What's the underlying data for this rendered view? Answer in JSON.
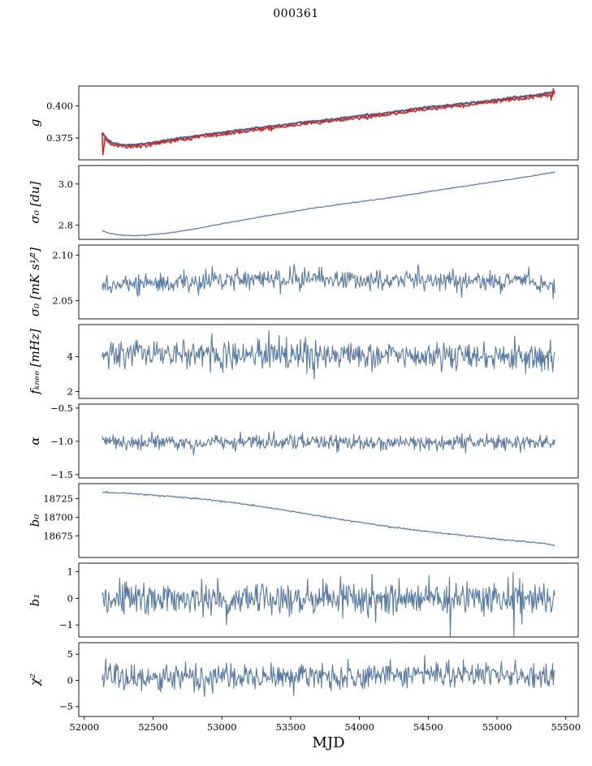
{
  "title": "000361",
  "xlabel": "MJD",
  "chart_data": {
    "type": "line",
    "layout": "8 vertically stacked subplots sharing one x-axis, no grid, no legend, thin black axes",
    "line_color": "#587aa5",
    "model_line_color": "#4d648c",
    "highlight_color": "#dd1c1c",
    "x_axis": {
      "label": "MJD",
      "ticks": [
        52000,
        52500,
        53000,
        53500,
        54000,
        54500,
        55000,
        55500
      ],
      "xlim": [
        51960,
        55590
      ],
      "data_range": [
        52130,
        55420
      ]
    },
    "panels": [
      {
        "name": "g",
        "ylabel": "g",
        "ylim": [
          0.358,
          0.4155
        ],
        "yticks": [
          0.375,
          0.4
        ],
        "ytick_labels": [
          "0.375",
          "0.400"
        ],
        "trend": [
          [
            52130,
            0.379
          ],
          [
            52160,
            0.3745
          ],
          [
            52200,
            0.371
          ],
          [
            52260,
            0.3693
          ],
          [
            52340,
            0.369
          ],
          [
            52430,
            0.37
          ],
          [
            52550,
            0.372
          ],
          [
            52700,
            0.3745
          ],
          [
            52850,
            0.3768
          ],
          [
            53000,
            0.3788
          ],
          [
            53200,
            0.3815
          ],
          [
            53400,
            0.3843
          ],
          [
            53600,
            0.3868
          ],
          [
            53800,
            0.389
          ],
          [
            54000,
            0.3918
          ],
          [
            54200,
            0.394
          ],
          [
            54350,
            0.3963
          ],
          [
            54500,
            0.3985
          ],
          [
            54650,
            0.4003
          ],
          [
            54800,
            0.4018
          ],
          [
            54950,
            0.4035
          ],
          [
            55100,
            0.4058
          ],
          [
            55250,
            0.4075
          ],
          [
            55420,
            0.4105
          ]
        ],
        "series": [
          {
            "name": "g_model",
            "color": "#4d648c",
            "width": 2.3,
            "offset": 0.0005,
            "noise": 0.0003,
            "n": 520,
            "seed": 11
          },
          {
            "name": "g_measured",
            "color": "#dd1c1c",
            "width": 1.5,
            "offset": -0.0009,
            "noise": 0.0007,
            "n": 620,
            "seed": 12,
            "spikes": [
              [
                52136,
                0.362
              ],
              [
                52141,
                0.3665
              ],
              [
                52147,
                0.3705
              ],
              [
                55396,
                0.4045
              ],
              [
                55408,
                0.4135
              ]
            ]
          }
        ]
      },
      {
        "name": "sigma0_du",
        "ylabel": "σ₀ [du]",
        "ylim": [
          2.73,
          3.09
        ],
        "yticks": [
          2.8,
          3.0
        ],
        "ytick_labels": [
          "2.8",
          "3.0"
        ],
        "trend": [
          [
            52130,
            2.772
          ],
          [
            52180,
            2.76
          ],
          [
            52250,
            2.752
          ],
          [
            52350,
            2.748
          ],
          [
            52450,
            2.75
          ],
          [
            52600,
            2.76
          ],
          [
            52750,
            2.775
          ],
          [
            52900,
            2.793
          ],
          [
            53050,
            2.812
          ],
          [
            53200,
            2.83
          ],
          [
            53350,
            2.848
          ],
          [
            53500,
            2.864
          ],
          [
            53650,
            2.88
          ],
          [
            53800,
            2.895
          ],
          [
            53950,
            2.909
          ],
          [
            54100,
            2.922
          ],
          [
            54250,
            2.936
          ],
          [
            54400,
            2.951
          ],
          [
            54550,
            2.968
          ],
          [
            54700,
            2.983
          ],
          [
            54850,
            2.998
          ],
          [
            55000,
            3.013
          ],
          [
            55150,
            3.028
          ],
          [
            55300,
            3.044
          ],
          [
            55420,
            3.058
          ]
        ],
        "series": [
          {
            "name": "sigma0_du",
            "color": "#587aa5",
            "width": 1.2,
            "noise": 0.0012,
            "n": 520,
            "seed": 21
          }
        ]
      },
      {
        "name": "sigma0_mks",
        "ylabel": "σ₀ [mK s¹⁄²]",
        "ylim": [
          2.03,
          2.111
        ],
        "yticks": [
          2.05,
          2.1
        ],
        "ytick_labels": [
          "2.05",
          "2.10"
        ],
        "trend": [
          [
            52130,
            2.066
          ],
          [
            52400,
            2.069
          ],
          [
            52700,
            2.071
          ],
          [
            53000,
            2.072
          ],
          [
            53300,
            2.0735
          ],
          [
            53700,
            2.073
          ],
          [
            54100,
            2.0725
          ],
          [
            54500,
            2.072
          ],
          [
            54900,
            2.0715
          ],
          [
            55200,
            2.0725
          ],
          [
            55420,
            2.067
          ]
        ],
        "series": [
          {
            "name": "sigma0_mks",
            "color": "#587aa5",
            "width": 1.1,
            "noise": 0.0055,
            "n": 560,
            "seed": 31
          }
        ]
      },
      {
        "name": "f_knee",
        "ylabel": "fₖₙₑₑ [mHz]",
        "ylim": [
          1.6,
          5.85
        ],
        "yticks": [
          2,
          4
        ],
        "ytick_labels": [
          "2",
          "4"
        ],
        "trend": [
          [
            52130,
            4.25
          ],
          [
            52600,
            4.2
          ],
          [
            53200,
            4.15
          ],
          [
            54000,
            4.12
          ],
          [
            54800,
            4.02
          ],
          [
            55420,
            3.95
          ]
        ],
        "series": [
          {
            "name": "f_knee",
            "color": "#587aa5",
            "width": 1.1,
            "noise": 0.42,
            "n": 620,
            "seed": 41
          }
        ]
      },
      {
        "name": "alpha",
        "ylabel": "α",
        "ylim": [
          -1.55,
          -0.44
        ],
        "yticks": [
          -1.5,
          -1.0,
          -0.5
        ],
        "ytick_labels": [
          "−1.5",
          "−1.0",
          "−0.5"
        ],
        "trend": [
          [
            52130,
            -1.02
          ],
          [
            55420,
            -1.02
          ]
        ],
        "series": [
          {
            "name": "alpha",
            "color": "#587aa5",
            "width": 1.1,
            "noise": 0.055,
            "n": 620,
            "seed": 51
          }
        ]
      },
      {
        "name": "b0",
        "ylabel": "b₀",
        "ylim": [
          18646,
          18745
        ],
        "yticks": [
          18675,
          18700,
          18725
        ],
        "ytick_labels": [
          "18675",
          "18700",
          "18725"
        ],
        "trend": [
          [
            52130,
            18733.5
          ],
          [
            52350,
            18731.5
          ],
          [
            52550,
            18729
          ],
          [
            52750,
            18726
          ],
          [
            52950,
            18722.5
          ],
          [
            53150,
            18718
          ],
          [
            53350,
            18712.5
          ],
          [
            53550,
            18706.5
          ],
          [
            53750,
            18700.5
          ],
          [
            53950,
            18694.5
          ],
          [
            54150,
            18689
          ],
          [
            54350,
            18684
          ],
          [
            54550,
            18679.5
          ],
          [
            54750,
            18675.5
          ],
          [
            54950,
            18671.5
          ],
          [
            55150,
            18668
          ],
          [
            55300,
            18665.5
          ],
          [
            55420,
            18662.5
          ]
        ],
        "series": [
          {
            "name": "b0",
            "color": "#587aa5",
            "width": 1.2,
            "noise": 0.5,
            "n": 520,
            "seed": 61
          }
        ]
      },
      {
        "name": "b1",
        "ylabel": "b₁",
        "ylim": [
          -1.45,
          1.32
        ],
        "yticks": [
          -1,
          0,
          1
        ],
        "ytick_labels": [
          "−1",
          "0",
          "1"
        ],
        "trend": [
          [
            52130,
            0
          ],
          [
            55420,
            0
          ]
        ],
        "series": [
          {
            "name": "b1",
            "color": "#587aa5",
            "width": 1.1,
            "noise": 0.33,
            "n": 620,
            "seed": 71,
            "spikes": [
              [
                54660,
                -1.42
              ]
            ]
          }
        ]
      },
      {
        "name": "chi2",
        "ylabel": "χ²",
        "ylim": [
          -6.9,
          7.2
        ],
        "yticks": [
          -5,
          0,
          5
        ],
        "ytick_labels": [
          "−5",
          "0",
          "5"
        ],
        "trend": [
          [
            52130,
            0.4
          ],
          [
            53200,
            0.7
          ],
          [
            54200,
            1.0
          ],
          [
            55420,
            1.4
          ]
        ],
        "series": [
          {
            "name": "chi2",
            "color": "#587aa5",
            "width": 1.1,
            "noise": 1.25,
            "n": 620,
            "seed": 81
          }
        ]
      }
    ]
  }
}
